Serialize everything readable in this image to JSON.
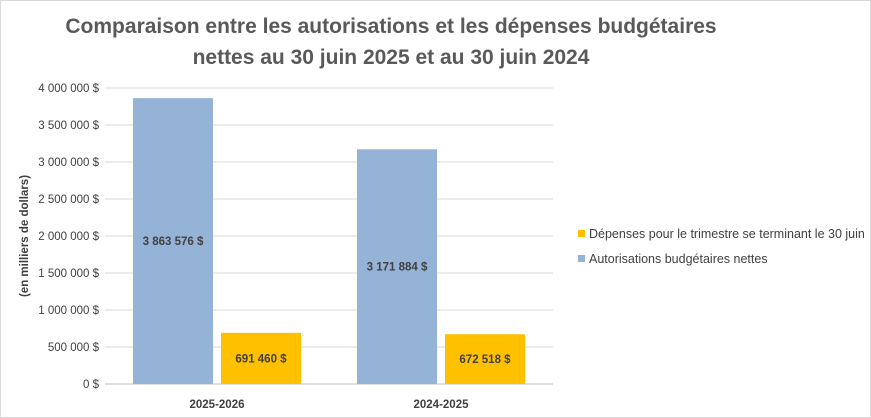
{
  "chart_data": {
    "type": "bar",
    "title_line1": "Comparaison entre les autorisations et les dépenses budgétaires",
    "title_line2": "nettes au 30 juin 2025 et au 30 juin 2024",
    "ylabel": "(en milliers de dollars)",
    "xlabel": "",
    "ylim": [
      0,
      4000000
    ],
    "y_ticks": [
      {
        "value": 0,
        "label": "0 $"
      },
      {
        "value": 500000,
        "label": "500 000 $"
      },
      {
        "value": 1000000,
        "label": "1 000 000 $"
      },
      {
        "value": 1500000,
        "label": "1 500 000 $"
      },
      {
        "value": 2000000,
        "label": "2 000 000 $"
      },
      {
        "value": 2500000,
        "label": "2 500 000 $"
      },
      {
        "value": 3000000,
        "label": "3 000 000 $"
      },
      {
        "value": 3500000,
        "label": "3 500 000 $"
      },
      {
        "value": 4000000,
        "label": "4 000 000 $"
      }
    ],
    "categories": [
      "2025-2026",
      "2024-2025"
    ],
    "series": [
      {
        "name": "Autorisations budgétaires nettes",
        "color": "#95b3d7",
        "values": [
          3863576,
          3171884
        ],
        "labels": [
          "3 863 576 $",
          "3 171 884 $"
        ]
      },
      {
        "name": "Dépenses pour le trimestre se terminant le 30 juin",
        "color": "#ffc000",
        "values": [
          691460,
          672518
        ],
        "labels": [
          "691 460 $",
          "672 518 $"
        ]
      }
    ],
    "gridlines": true,
    "legend_position": "right"
  }
}
